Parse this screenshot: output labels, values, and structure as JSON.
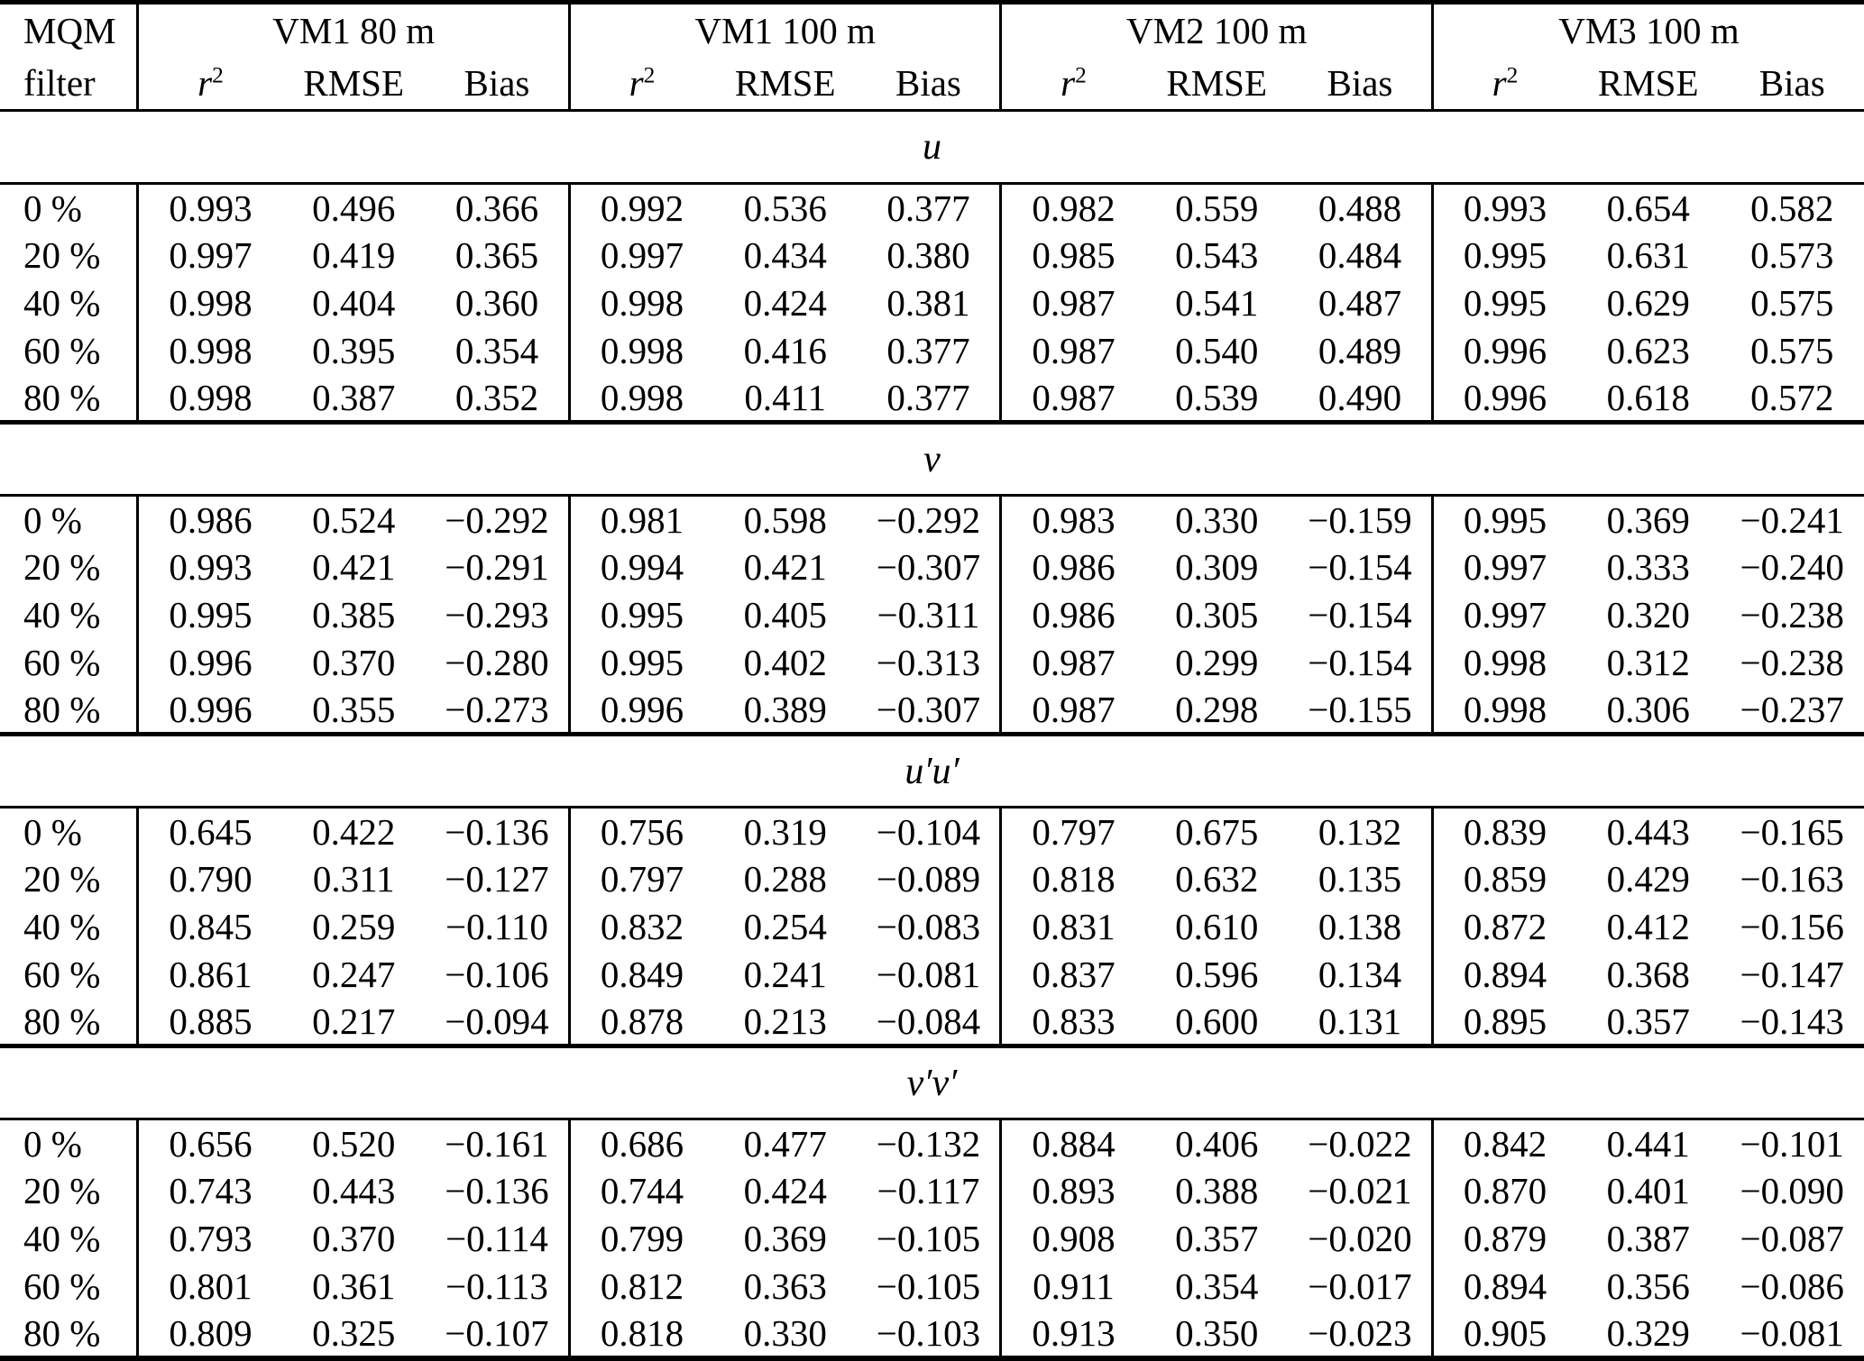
{
  "table": {
    "row_header": {
      "line1": "MQM",
      "line2": "filter"
    },
    "groups": [
      {
        "title": "VM1 80 m"
      },
      {
        "title": "VM1 100 m"
      },
      {
        "title": "VM2 100 m"
      },
      {
        "title": "VM3 100 m"
      }
    ],
    "metrics": [
      {
        "base": "r",
        "sup": "2"
      },
      {
        "base": "RMSE"
      },
      {
        "base": "Bias"
      }
    ],
    "sections": [
      {
        "label": "u",
        "rows": [
          {
            "filter": "0 %",
            "values": [
              "0.993",
              "0.496",
              "0.366",
              "0.992",
              "0.536",
              "0.377",
              "0.982",
              "0.559",
              "0.488",
              "0.993",
              "0.654",
              "0.582"
            ]
          },
          {
            "filter": "20 %",
            "values": [
              "0.997",
              "0.419",
              "0.365",
              "0.997",
              "0.434",
              "0.380",
              "0.985",
              "0.543",
              "0.484",
              "0.995",
              "0.631",
              "0.573"
            ]
          },
          {
            "filter": "40 %",
            "values": [
              "0.998",
              "0.404",
              "0.360",
              "0.998",
              "0.424",
              "0.381",
              "0.987",
              "0.541",
              "0.487",
              "0.995",
              "0.629",
              "0.575"
            ]
          },
          {
            "filter": "60 %",
            "values": [
              "0.998",
              "0.395",
              "0.354",
              "0.998",
              "0.416",
              "0.377",
              "0.987",
              "0.540",
              "0.489",
              "0.996",
              "0.623",
              "0.575"
            ]
          },
          {
            "filter": "80 %",
            "values": [
              "0.998",
              "0.387",
              "0.352",
              "0.998",
              "0.411",
              "0.377",
              "0.987",
              "0.539",
              "0.490",
              "0.996",
              "0.618",
              "0.572"
            ]
          }
        ]
      },
      {
        "label": "v",
        "rows": [
          {
            "filter": "0 %",
            "values": [
              "0.986",
              "0.524",
              "−0.292",
              "0.981",
              "0.598",
              "−0.292",
              "0.983",
              "0.330",
              "−0.159",
              "0.995",
              "0.369",
              "−0.241"
            ]
          },
          {
            "filter": "20 %",
            "values": [
              "0.993",
              "0.421",
              "−0.291",
              "0.994",
              "0.421",
              "−0.307",
              "0.986",
              "0.309",
              "−0.154",
              "0.997",
              "0.333",
              "−0.240"
            ]
          },
          {
            "filter": "40 %",
            "values": [
              "0.995",
              "0.385",
              "−0.293",
              "0.995",
              "0.405",
              "−0.311",
              "0.986",
              "0.305",
              "−0.154",
              "0.997",
              "0.320",
              "−0.238"
            ]
          },
          {
            "filter": "60 %",
            "values": [
              "0.996",
              "0.370",
              "−0.280",
              "0.995",
              "0.402",
              "−0.313",
              "0.987",
              "0.299",
              "−0.154",
              "0.998",
              "0.312",
              "−0.238"
            ]
          },
          {
            "filter": "80 %",
            "values": [
              "0.996",
              "0.355",
              "−0.273",
              "0.996",
              "0.389",
              "−0.307",
              "0.987",
              "0.298",
              "−0.155",
              "0.998",
              "0.306",
              "−0.237"
            ]
          }
        ]
      },
      {
        "label": "u′u′",
        "rows": [
          {
            "filter": "0 %",
            "values": [
              "0.645",
              "0.422",
              "−0.136",
              "0.756",
              "0.319",
              "−0.104",
              "0.797",
              "0.675",
              "0.132",
              "0.839",
              "0.443",
              "−0.165"
            ]
          },
          {
            "filter": "20 %",
            "values": [
              "0.790",
              "0.311",
              "−0.127",
              "0.797",
              "0.288",
              "−0.089",
              "0.818",
              "0.632",
              "0.135",
              "0.859",
              "0.429",
              "−0.163"
            ]
          },
          {
            "filter": "40 %",
            "values": [
              "0.845",
              "0.259",
              "−0.110",
              "0.832",
              "0.254",
              "−0.083",
              "0.831",
              "0.610",
              "0.138",
              "0.872",
              "0.412",
              "−0.156"
            ]
          },
          {
            "filter": "60 %",
            "values": [
              "0.861",
              "0.247",
              "−0.106",
              "0.849",
              "0.241",
              "−0.081",
              "0.837",
              "0.596",
              "0.134",
              "0.894",
              "0.368",
              "−0.147"
            ]
          },
          {
            "filter": "80 %",
            "values": [
              "0.885",
              "0.217",
              "−0.094",
              "0.878",
              "0.213",
              "−0.084",
              "0.833",
              "0.600",
              "0.131",
              "0.895",
              "0.357",
              "−0.143"
            ]
          }
        ]
      },
      {
        "label": "v′v′",
        "rows": [
          {
            "filter": "0 %",
            "values": [
              "0.656",
              "0.520",
              "−0.161",
              "0.686",
              "0.477",
              "−0.132",
              "0.884",
              "0.406",
              "−0.022",
              "0.842",
              "0.441",
              "−0.101"
            ]
          },
          {
            "filter": "20 %",
            "values": [
              "0.743",
              "0.443",
              "−0.136",
              "0.744",
              "0.424",
              "−0.117",
              "0.893",
              "0.388",
              "−0.021",
              "0.870",
              "0.401",
              "−0.090"
            ]
          },
          {
            "filter": "40 %",
            "values": [
              "0.793",
              "0.370",
              "−0.114",
              "0.799",
              "0.369",
              "−0.105",
              "0.908",
              "0.357",
              "−0.020",
              "0.879",
              "0.387",
              "−0.087"
            ]
          },
          {
            "filter": "60 %",
            "values": [
              "0.801",
              "0.361",
              "−0.113",
              "0.812",
              "0.363",
              "−0.105",
              "0.911",
              "0.354",
              "−0.017",
              "0.894",
              "0.356",
              "−0.086"
            ]
          },
          {
            "filter": "80 %",
            "values": [
              "0.809",
              "0.325",
              "−0.107",
              "0.818",
              "0.330",
              "−0.103",
              "0.913",
              "0.350",
              "−0.023",
              "0.905",
              "0.329",
              "−0.081"
            ]
          }
        ]
      }
    ]
  }
}
